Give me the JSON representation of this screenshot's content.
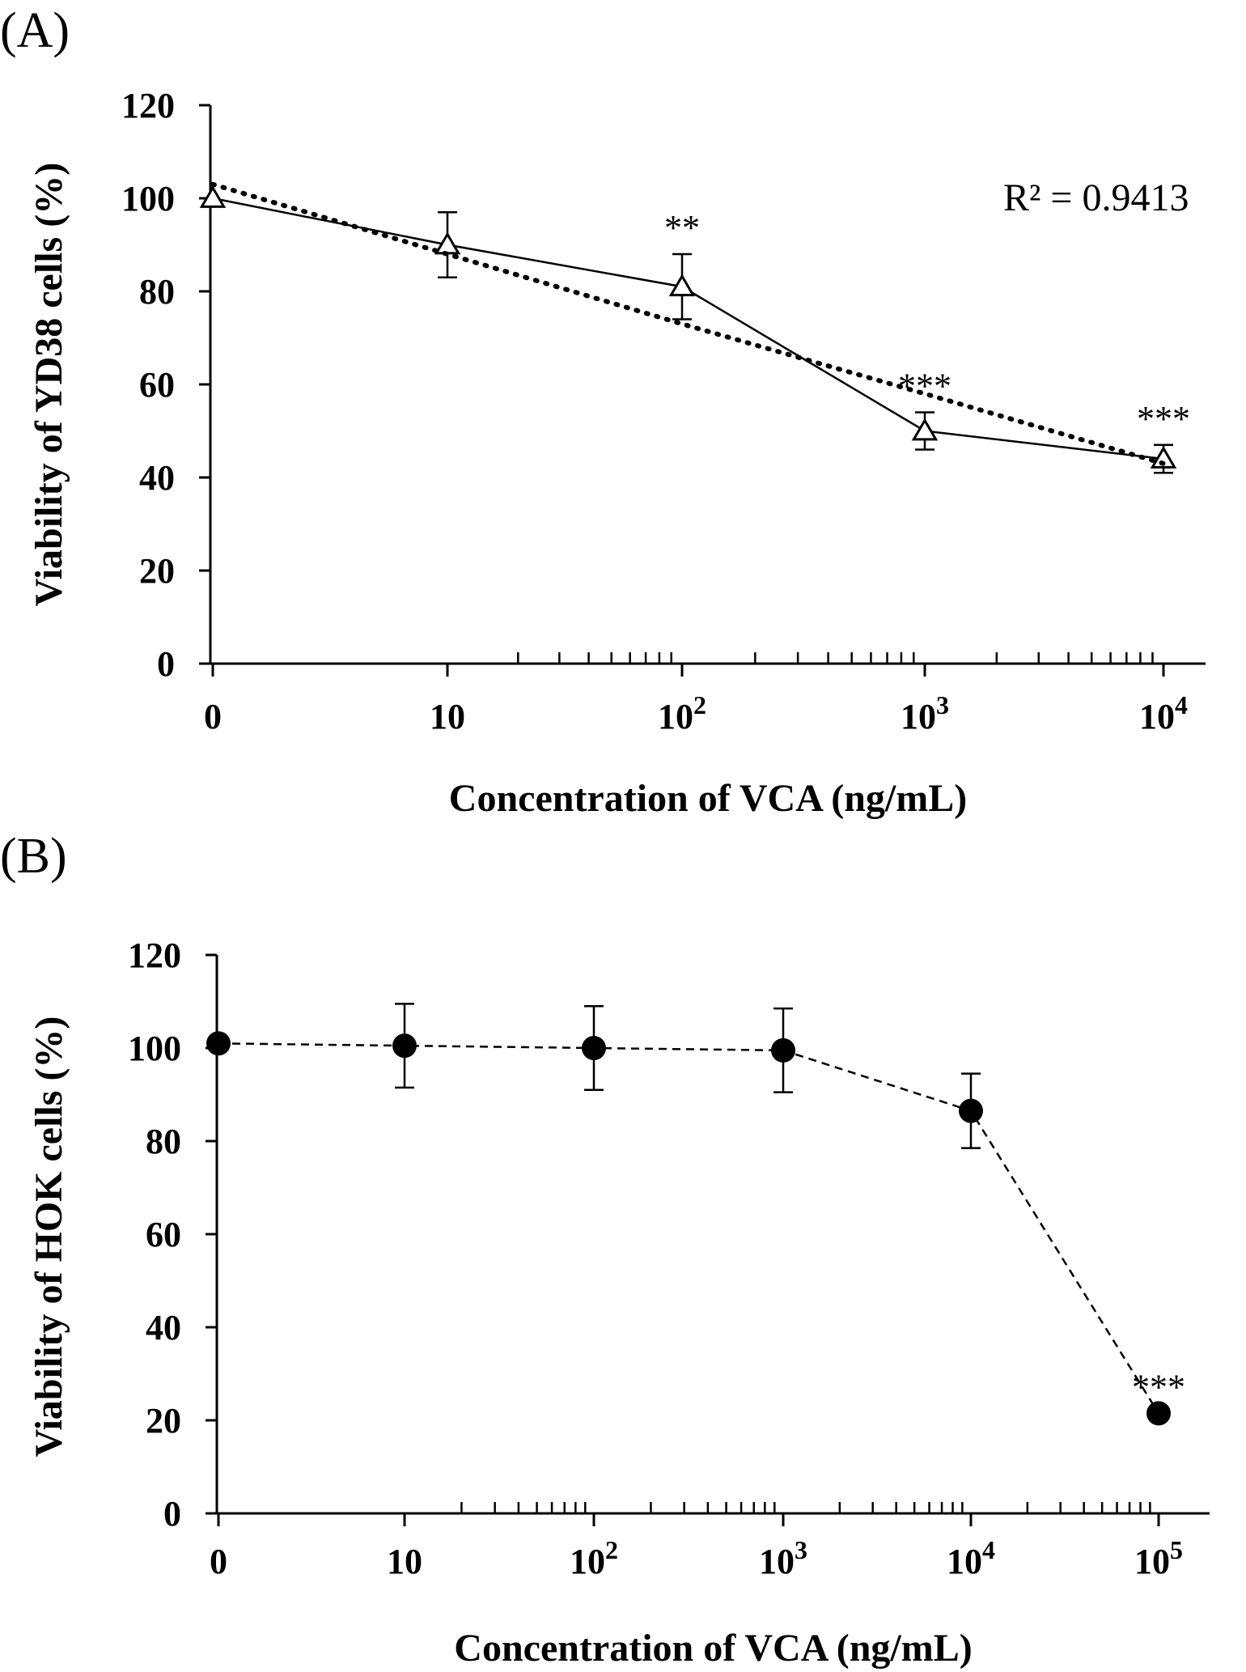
{
  "chart_data": [
    {
      "panel_label": "(A)",
      "type": "line",
      "x_scale": "log (first category = 0)",
      "categories": [
        "0",
        "10",
        "10^2",
        "10^3",
        "10^4"
      ],
      "x_tick_labels": [
        {
          "base": "0",
          "exp": ""
        },
        {
          "base": "10",
          "exp": ""
        },
        {
          "base": "10",
          "exp": "2"
        },
        {
          "base": "10",
          "exp": "3"
        },
        {
          "base": "10",
          "exp": "4"
        }
      ],
      "xlabel": "Concentration of VCA (ng/mL)",
      "ylabel": "Viability of YD38 cells (%)",
      "ylim": [
        0,
        120
      ],
      "y_ticks": [
        "0",
        "20",
        "40",
        "60",
        "80",
        "100",
        "120"
      ],
      "series": [
        {
          "name": "YD38",
          "marker": "open-triangle",
          "line_style": "solid",
          "values": [
            100,
            90,
            81,
            50,
            44
          ],
          "errors": [
            0,
            7,
            7,
            4,
            3
          ],
          "significance": [
            "",
            "",
            "**",
            "***",
            "***"
          ]
        },
        {
          "name": "Trend line",
          "line_style": "dotted",
          "values": [
            103,
            88,
            73,
            58,
            43
          ]
        }
      ],
      "annotation": "R² = 0.9413"
    },
    {
      "panel_label": "(B)",
      "type": "line",
      "x_scale": "log (first category = 0)",
      "categories": [
        "0",
        "10",
        "10^2",
        "10^3",
        "10^4",
        "10^5"
      ],
      "x_tick_labels": [
        {
          "base": "0",
          "exp": ""
        },
        {
          "base": "10",
          "exp": ""
        },
        {
          "base": "10",
          "exp": "2"
        },
        {
          "base": "10",
          "exp": "3"
        },
        {
          "base": "10",
          "exp": "4"
        },
        {
          "base": "10",
          "exp": "5"
        }
      ],
      "xlabel": "Concentration of VCA (ng/mL)",
      "ylabel": "Viability of HOK cells (%)",
      "ylim": [
        0,
        120
      ],
      "y_ticks": [
        "0",
        "20",
        "40",
        "60",
        "80",
        "100",
        "120"
      ],
      "series": [
        {
          "name": "HOK",
          "marker": "filled-circle",
          "line_style": "dashed",
          "values": [
            101,
            100.5,
            100,
            99.5,
            86.5,
            21.5
          ],
          "errors": [
            0,
            9,
            9,
            9,
            8,
            0
          ],
          "significance": [
            "",
            "",
            "",
            "",
            "",
            "***"
          ]
        }
      ]
    }
  ]
}
